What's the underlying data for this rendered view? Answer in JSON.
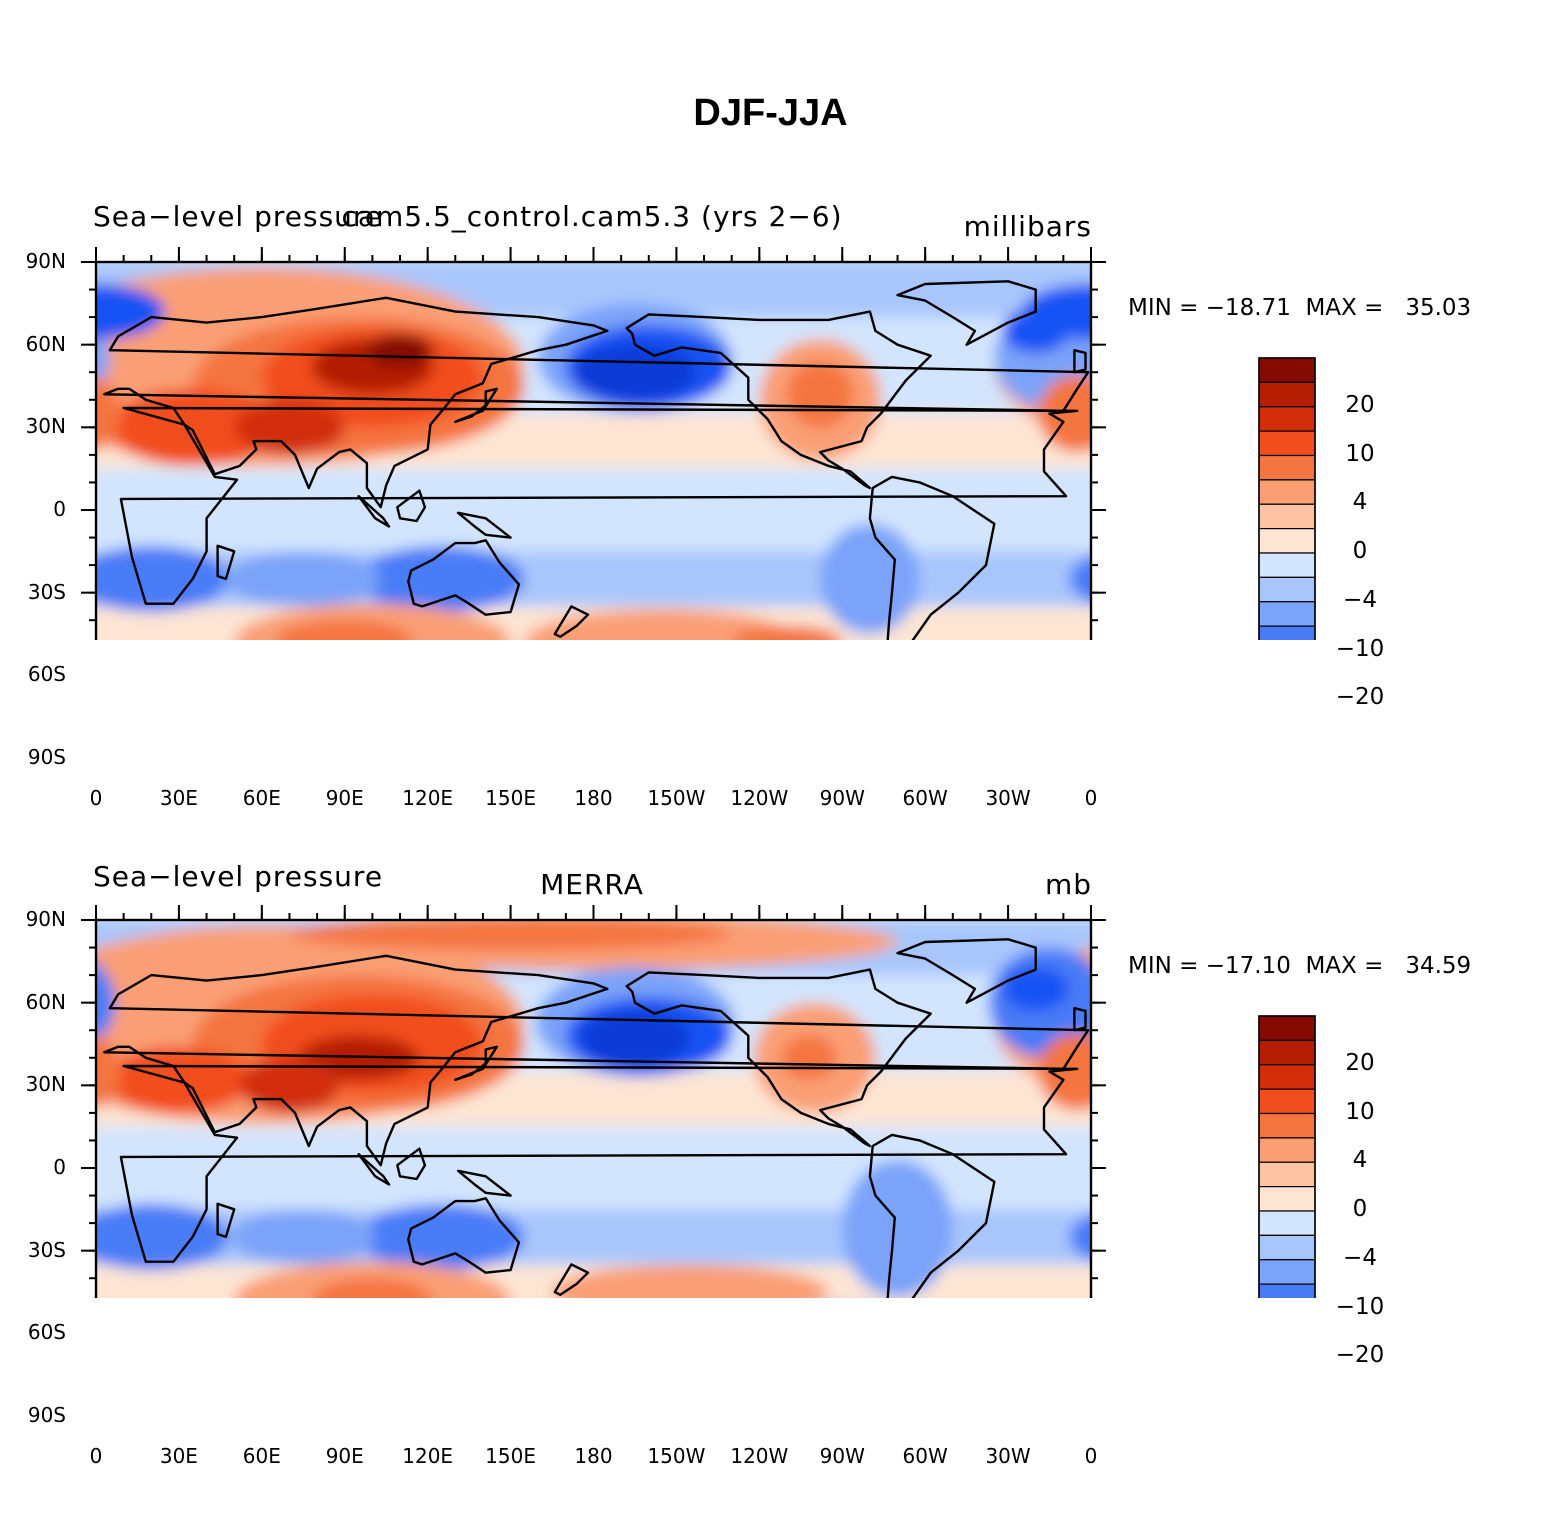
{
  "title": "DJF-JJA",
  "colors": [
    "#08088a",
    "#0d24b8",
    "#0f3ad6",
    "#1753f4",
    "#4a7bf7",
    "#7aa3f9",
    "#a9c6fc",
    "#d2e5fd",
    "#fde5d4",
    "#fcc3a5",
    "#fa9f74",
    "#f4753f",
    "#f24e1d",
    "#d22e0c",
    "#b41e03",
    "#850b00"
  ],
  "colorbar_labels": [
    "20",
    "10",
    "4",
    "0",
    "−4",
    "−10",
    "−20"
  ],
  "lat_labels": [
    "90N",
    "60N",
    "30N",
    "0",
    "30S",
    "60S",
    "90S"
  ],
  "lon_labels": [
    "0",
    "30E",
    "60E",
    "90E",
    "120E",
    "150E",
    "180",
    "150W",
    "120W",
    "90W",
    "60W",
    "30W",
    "0"
  ],
  "panels": [
    {
      "left_title": "Sea−level pressure",
      "center_title": "cam5.5_control.cam5.3 (yrs 2−6)",
      "right_title": "millibars",
      "minmax": "MIN = −18.71  MAX =   35.03"
    },
    {
      "left_title": "Sea−level pressure",
      "center_title": "MERRA",
      "right_title": "mb",
      "minmax": "MIN = −17.10  MAX =   34.59"
    }
  ]
}
